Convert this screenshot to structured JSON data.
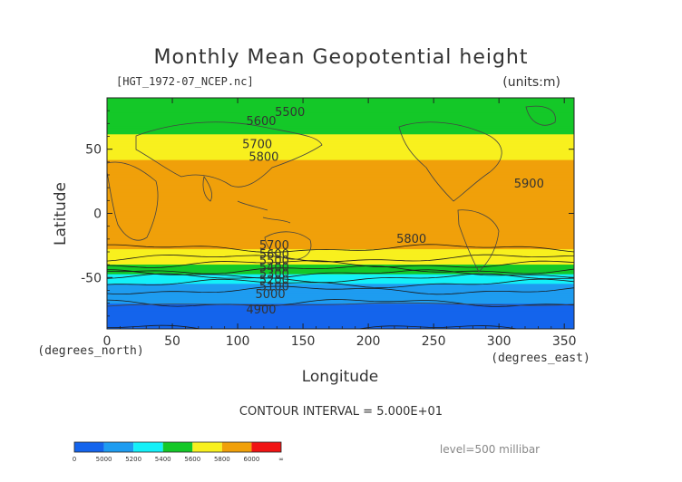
{
  "chart_data": {
    "type": "heatmap",
    "title": "Monthly Mean Geopotential height",
    "source_file": "[HGT_1972-07_NCEP.nc]",
    "units_note": "(units:m)",
    "xlabel": "Longitude",
    "ylabel": "Latitude",
    "x_unit_note": "(degrees_east)",
    "y_unit_note": "(degrees_north)",
    "xlim": [
      0,
      357.5
    ],
    "ylim": [
      -90,
      90
    ],
    "x_ticks": [
      0,
      50,
      100,
      150,
      200,
      250,
      300,
      350
    ],
    "y_ticks": [
      -50,
      0,
      50
    ],
    "x_tick_labels": [
      "0",
      "50",
      "100",
      "150",
      "200",
      "250",
      "300",
      "350"
    ],
    "y_tick_labels": [
      "-50",
      "0",
      "50"
    ],
    "contour_interval_text": "CONTOUR INTERVAL = 5.000E+01",
    "level_text": "level=500 millibar",
    "colorbar": {
      "labels": [
        "0",
        "5000",
        "5200",
        "5400",
        "5600",
        "5800",
        "6000",
        "∞"
      ],
      "bins": [
        {
          "from": 0,
          "to": 5000,
          "color": "#1464ec"
        },
        {
          "from": 5000,
          "to": 5200,
          "color": "#1e9cf0"
        },
        {
          "from": 5200,
          "to": 5400,
          "color": "#14f0f8"
        },
        {
          "from": 5400,
          "to": 5600,
          "color": "#14c828"
        },
        {
          "from": 5600,
          "to": 5800,
          "color": "#f8f01e"
        },
        {
          "from": 5800,
          "to": 6000,
          "color": "#f0a00a"
        },
        {
          "from": 6000,
          "to": "inf",
          "color": "#f01414"
        }
      ]
    },
    "latitude_profile_m": [
      {
        "lat": -90,
        "value": 4900
      },
      {
        "lat": -75,
        "value": 4960
      },
      {
        "lat": -62,
        "value": 5060
      },
      {
        "lat": -52,
        "value": 5250
      },
      {
        "lat": -44,
        "value": 5500
      },
      {
        "lat": -35,
        "value": 5700
      },
      {
        "lat": -25,
        "value": 5830
      },
      {
        "lat": 0,
        "value": 5870
      },
      {
        "lat": 25,
        "value": 5880
      },
      {
        "lat": 42,
        "value": 5800
      },
      {
        "lat": 52,
        "value": 5700
      },
      {
        "lat": 62,
        "value": 5600
      },
      {
        "lat": 72,
        "value": 5500
      },
      {
        "lat": 90,
        "value": 5420
      }
    ],
    "contour_labels": [
      {
        "text": "5500",
        "lon": 140,
        "lat": 76
      },
      {
        "text": "5600",
        "lon": 118,
        "lat": 69
      },
      {
        "text": "5700",
        "lon": 115,
        "lat": 51
      },
      {
        "text": "5800",
        "lon": 120,
        "lat": 41
      },
      {
        "text": "5900",
        "lon": 323,
        "lat": 20
      },
      {
        "text": "5800",
        "lon": 233,
        "lat": -23
      },
      {
        "text": "5700",
        "lon": 128,
        "lat": -28
      },
      {
        "text": "5600",
        "lon": 128,
        "lat": -35
      },
      {
        "text": "5500",
        "lon": 128,
        "lat": -40
      },
      {
        "text": "5400",
        "lon": 128,
        "lat": -45
      },
      {
        "text": "5300",
        "lon": 128,
        "lat": -50
      },
      {
        "text": "5200",
        "lon": 128,
        "lat": -55
      },
      {
        "text": "5100",
        "lon": 128,
        "lat": -60
      },
      {
        "text": "5000",
        "lon": 125,
        "lat": -66
      },
      {
        "text": "4900",
        "lon": 118,
        "lat": -78
      }
    ]
  }
}
